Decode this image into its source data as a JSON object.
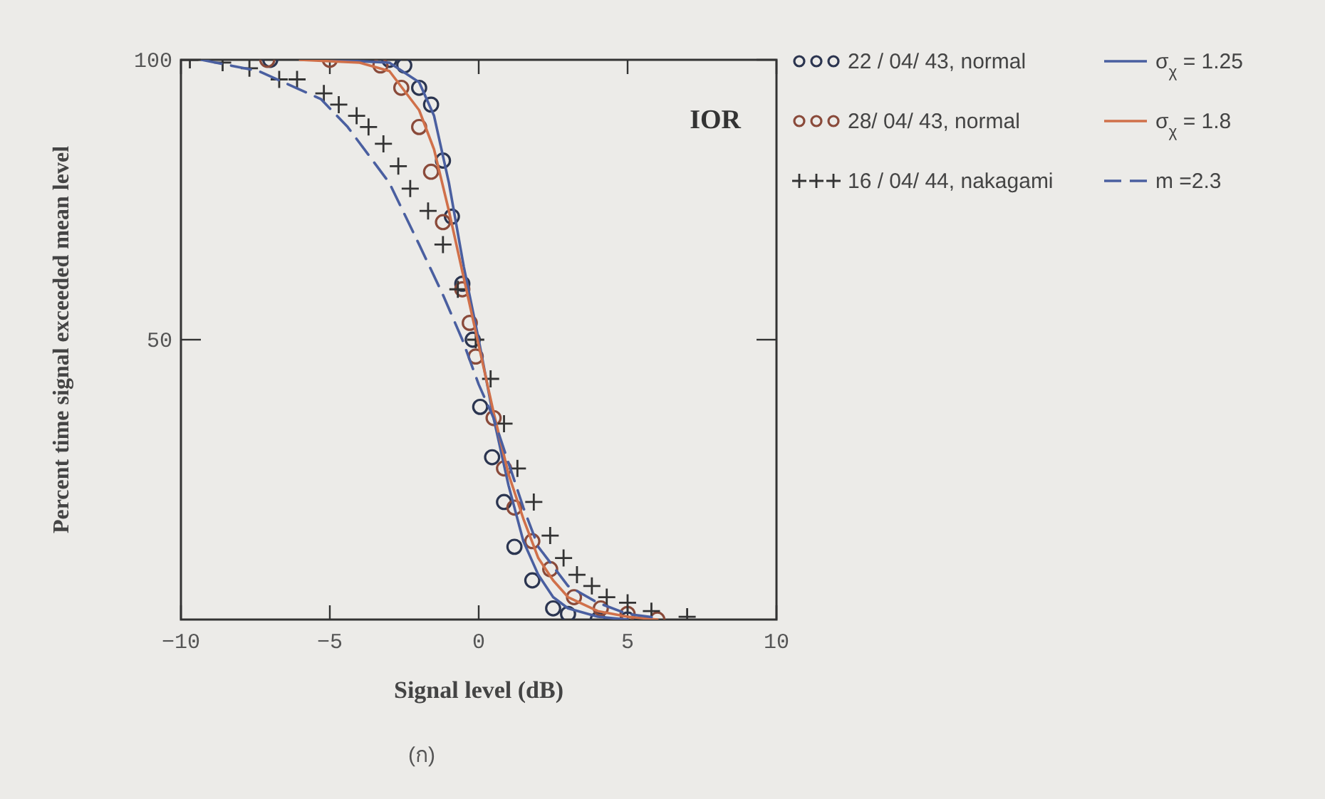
{
  "chart_data": {
    "type": "scatter",
    "xlabel": "Signal level   (dB)",
    "ylabel": "Percent  time signal exceeded mean level",
    "xlim": [
      -10,
      10
    ],
    "xticks": [
      -10,
      -5,
      0,
      5,
      10
    ],
    "ylim": [
      0,
      100
    ],
    "yticks": [
      50,
      100
    ],
    "legend": "right",
    "annotations": [
      "IOR",
      "(ก)"
    ],
    "series": [
      {
        "name": "22 / 04/ 43, normal",
        "marker": "circle",
        "color": "#2b3550",
        "x": [
          -7,
          -3,
          -2.5,
          -2,
          -1.6,
          -1.2,
          -0.9,
          -0.55,
          -0.2,
          0.05,
          0.45,
          0.85,
          1.2,
          1.8,
          2.5,
          3,
          4,
          5
        ],
        "values": [
          100,
          100,
          99,
          95,
          92,
          82,
          72,
          60,
          50,
          38,
          29,
          21,
          13,
          7,
          2,
          1,
          0,
          0
        ]
      },
      {
        "name": "28/ 04/ 43, normal",
        "marker": "circle",
        "color": "#8a4a3a",
        "x": [
          -7.1,
          -5,
          -3.3,
          -2.6,
          -2,
          -1.6,
          -1.2,
          -0.55,
          -0.3,
          -0.1,
          0.5,
          0.85,
          1.2,
          1.8,
          2.4,
          3.2,
          4.1,
          5,
          6
        ],
        "values": [
          100,
          100,
          99,
          95,
          88,
          80,
          71,
          59,
          53,
          47,
          36,
          27,
          20,
          14,
          9,
          4,
          2,
          1,
          0
        ]
      },
      {
        "name": "16 / 04/ 44, nakagami",
        "marker": "cross",
        "color": "#333333",
        "x": [
          -9.7,
          -8.6,
          -7.7,
          -6.7,
          -6.1,
          -5.2,
          -4.7,
          -4.1,
          -3.7,
          -3.2,
          -2.7,
          -2.3,
          -1.7,
          -1.2,
          -0.7,
          -0.1,
          0.4,
          0.85,
          1.3,
          1.85,
          2.4,
          2.85,
          3.3,
          3.8,
          4.3,
          5,
          5.8,
          7
        ],
        "values": [
          100,
          99.5,
          98.5,
          96.5,
          96.5,
          94,
          92,
          90,
          88,
          85,
          81,
          77,
          73,
          67,
          59,
          50,
          43,
          35,
          27,
          21,
          15,
          11,
          8,
          6,
          4,
          3,
          1.5,
          0.5
        ]
      },
      {
        "name": "σ$_{χ}$ = 1.25",
        "type": "line",
        "line_style": "solid",
        "color": "#4a5fa0",
        "x": [
          -5,
          -3,
          -2,
          -1.5,
          -1,
          -0.5,
          0,
          0.5,
          1,
          1.5,
          2,
          2.5,
          3,
          4,
          5
        ],
        "values": [
          100,
          99.5,
          96,
          90,
          78,
          63,
          50,
          36,
          24,
          14,
          8,
          4,
          2,
          0.5,
          0
        ]
      },
      {
        "name": "σ$_{χ}$ = 1.8",
        "type": "line",
        "line_style": "solid",
        "color": "#d0704a",
        "x": [
          -6,
          -4,
          -3,
          -2,
          -1.5,
          -1,
          -0.5,
          0,
          0.5,
          1,
          1.5,
          2,
          2.5,
          3,
          4,
          5,
          6
        ],
        "values": [
          100,
          99.5,
          98,
          91,
          84,
          73,
          61,
          49,
          37,
          26,
          18,
          11,
          7,
          4,
          1.5,
          0.5,
          0
        ]
      },
      {
        "name": "m =2.3",
        "type": "line",
        "line_style": "dashed",
        "color": "#4a5fa0",
        "x": [
          -9.3,
          -7.4,
          -5.3,
          -4.4,
          -3,
          -2,
          -1.2,
          -0.55,
          0,
          0.5,
          1,
          1.5,
          2,
          3,
          4,
          5,
          6
        ],
        "values": [
          100,
          98,
          93,
          88,
          78,
          67,
          58,
          50,
          42,
          36,
          28,
          20,
          13,
          6,
          3,
          1,
          0.3
        ]
      }
    ]
  }
}
